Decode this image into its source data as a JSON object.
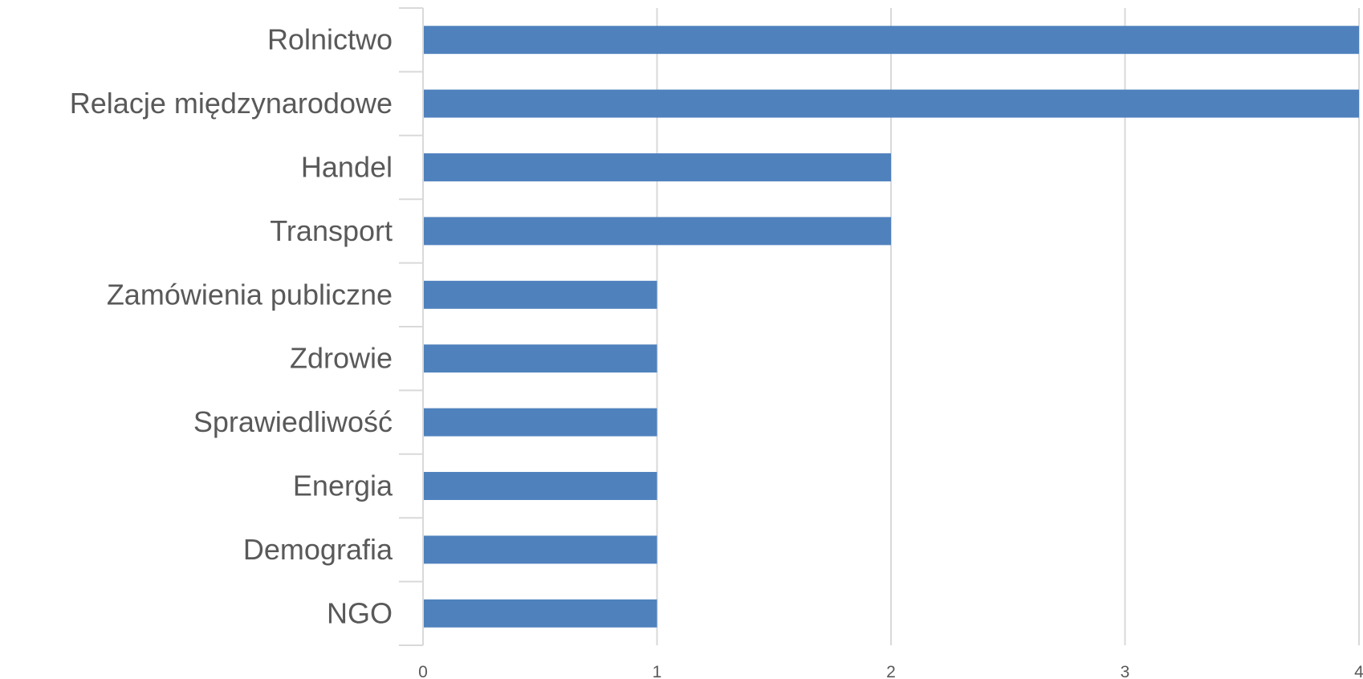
{
  "chart_data": {
    "type": "bar",
    "orientation": "horizontal",
    "categories": [
      "Rolnictwo",
      "Relacje międzynarodowe",
      "Handel",
      "Transport",
      "Zamówienia publiczne",
      "Zdrowie",
      "Sprawiedliwość",
      "Energia",
      "Demografia",
      "NGO"
    ],
    "values": [
      4,
      4,
      2,
      2,
      1,
      1,
      1,
      1,
      1,
      1
    ],
    "xlim": [
      0,
      4
    ],
    "x_ticks": [
      "0",
      "1",
      "2",
      "3",
      "4"
    ],
    "grid": true,
    "legend": "none",
    "colors": {
      "bar": "#4f81bd",
      "grid": "#d9d9d9",
      "text": "#595959"
    }
  }
}
